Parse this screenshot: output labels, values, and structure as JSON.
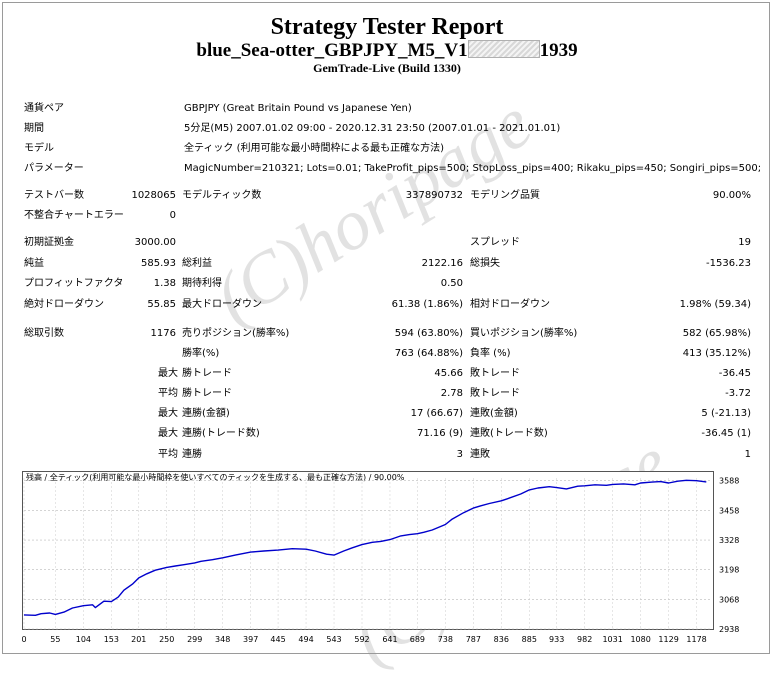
{
  "header": {
    "title": "Strategy Tester Report",
    "subtitle_prefix": "blue_Sea-otter_GBPJPY_M5_V1",
    "subtitle_suffix": "1939",
    "server": "GemTrade-Live (Build 1330)"
  },
  "info": {
    "symbol_label": "通貨ペア",
    "symbol_value": "GBPJPY (Great Britain Pound vs Japanese Yen)",
    "period_label": "期間",
    "period_value": "5分足(M5) 2007.01.02 09:00 - 2020.12.31 23:50 (2007.01.01 - 2021.01.01)",
    "model_label": "モデル",
    "model_value": "全ティック (利用可能な最小時間枠による最も正確な方法)",
    "params_label": "パラメーター",
    "params_value": "MagicNumber=210321; Lots=0.01; TakeProfit_pips=500; StopLoss_pips=400; Rikaku_pips=450; Songiri_pips=500;"
  },
  "stats": {
    "bars_label": "テストバー数",
    "bars_value": "1028065",
    "ticks_label": "モデルティック数",
    "ticks_value": "337890732",
    "quality_label": "モデリング品質",
    "quality_value": "90.00%",
    "mismatch_label": "不整合チャートエラー",
    "mismatch_value": "0",
    "deposit_label": "初期証拠金",
    "deposit_value": "3000.00",
    "spread_label": "スプレッド",
    "spread_value": "19",
    "net_label": "純益",
    "net_value": "585.93",
    "gross_profit_label": "総利益",
    "gross_profit_value": "2122.16",
    "gross_loss_label": "総損失",
    "gross_loss_value": "-1536.23",
    "pf_label": "プロフィットファクタ",
    "pf_value": "1.38",
    "payoff_label": "期待利得",
    "payoff_value": "0.50",
    "abs_dd_label": "絶対ドローダウン",
    "abs_dd_value": "55.85",
    "max_dd_label": "最大ドローダウン",
    "max_dd_value": "61.38 (1.86%)",
    "rel_dd_label": "相対ドローダウン",
    "rel_dd_value": "1.98% (59.34)",
    "trades_label": "総取引数",
    "trades_value": "1176",
    "short_label": "売りポジション(勝率%)",
    "short_value": "594 (63.80%)",
    "long_label": "買いポジション(勝率%)",
    "long_value": "582 (65.98%)",
    "winrate_label": "勝率(%)",
    "winrate_value": "763 (64.88%)",
    "lossrate_label": "負率 (%)",
    "lossrate_value": "413 (35.12%)",
    "largest": "最大",
    "average": "平均",
    "win_trade_label": "勝トレード",
    "loss_trade_label": "敗トレード",
    "largest_win_value": "45.66",
    "largest_loss_value": "-36.45",
    "avg_win_value": "2.78",
    "avg_loss_value": "-3.72",
    "max_consec_win_amt_label": "連勝(金額)",
    "max_consec_win_amt_value": "17 (66.67)",
    "max_consec_loss_amt_label": "連敗(金額)",
    "max_consec_loss_amt_value": "5 (-21.13)",
    "max_consec_win_trd_label": "連勝(トレード数)",
    "max_consec_win_trd_value": "71.16 (9)",
    "max_consec_loss_trd_label": "連敗(トレード数)",
    "max_consec_loss_trd_value": "-36.45 (1)",
    "avg_consec_win_label": "連勝",
    "avg_consec_win_value": "3",
    "avg_consec_loss_label": "連敗",
    "avg_consec_loss_value": "1"
  },
  "watermark": "(C)horipage",
  "chart_data": {
    "type": "line",
    "title": "残高 / 全ティック(利用可能な最小時間枠を使いすべてのティックを生成する、最も正確な方法) / 90.00%",
    "x_ticks": [
      0,
      55,
      104,
      153,
      201,
      250,
      299,
      348,
      397,
      445,
      494,
      543,
      592,
      641,
      689,
      738,
      787,
      836,
      885,
      933,
      982,
      1031,
      1080,
      1129,
      1178
    ],
    "y_ticks": [
      2938,
      3068,
      3198,
      3328,
      3458,
      3588
    ],
    "ylim": [
      2938,
      3600
    ],
    "xlim": [
      0,
      1205
    ],
    "series": [
      {
        "x": [
          0,
          20,
          30,
          45,
          55,
          70,
          85,
          104,
          120,
          125,
          140,
          153,
          165,
          175,
          190,
          201,
          215,
          230,
          250,
          265,
          280,
          299,
          310,
          330,
          348,
          370,
          397,
          420,
          445,
          470,
          494,
          510,
          530,
          543,
          560,
          575,
          592,
          610,
          625,
          641,
          660,
          675,
          689,
          700,
          715,
          738,
          750,
          770,
          787,
          800,
          815,
          836,
          850,
          870,
          885,
          900,
          920,
          933,
          950,
          970,
          982,
          1000,
          1020,
          1031,
          1050,
          1070,
          1080,
          1100,
          1115,
          1129,
          1145,
          1160,
          1178,
          1195
        ],
        "y": [
          3000,
          2998,
          3005,
          3008,
          3002,
          3012,
          3030,
          3040,
          3044,
          3032,
          3060,
          3058,
          3078,
          3108,
          3135,
          3162,
          3180,
          3196,
          3208,
          3214,
          3220,
          3228,
          3235,
          3242,
          3250,
          3262,
          3275,
          3280,
          3284,
          3290,
          3288,
          3280,
          3266,
          3262,
          3280,
          3294,
          3308,
          3318,
          3322,
          3330,
          3346,
          3352,
          3356,
          3362,
          3372,
          3396,
          3420,
          3448,
          3468,
          3478,
          3488,
          3500,
          3512,
          3530,
          3548,
          3556,
          3562,
          3558,
          3552,
          3564,
          3566,
          3570,
          3568,
          3572,
          3574,
          3570,
          3578,
          3582,
          3584,
          3578,
          3586,
          3590,
          3588,
          3583
        ]
      }
    ]
  }
}
